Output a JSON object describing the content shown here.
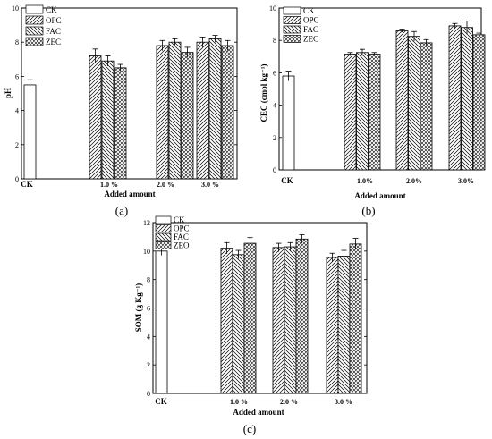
{
  "chart_data": [
    {
      "type": "bar",
      "panel_label": "(a)",
      "ylabel": "pH",
      "xlabel": "Added amount",
      "ylim": [
        0,
        10
      ],
      "yticks": [
        "0",
        "2",
        "4",
        "6",
        "8",
        "10"
      ],
      "group_labels": [
        "CK",
        "1.0 %",
        "2.0 %",
        "3.0 %"
      ],
      "legend": [
        "CK",
        "OPC",
        "FAC",
        "ZEC"
      ],
      "legend_position": "top-left",
      "series": [
        {
          "name": "CK",
          "values": [
            5.5,
            null,
            null,
            null
          ],
          "errors": [
            0.3,
            null,
            null,
            null
          ]
        },
        {
          "name": "OPC",
          "values": [
            null,
            7.2,
            7.8,
            8.0
          ],
          "errors": [
            null,
            0.4,
            0.3,
            0.3
          ]
        },
        {
          "name": "FAC",
          "values": [
            null,
            6.9,
            8.0,
            8.2
          ],
          "errors": [
            null,
            0.3,
            0.2,
            0.2
          ]
        },
        {
          "name": "ZEC",
          "values": [
            null,
            6.5,
            7.4,
            7.8
          ],
          "errors": [
            null,
            0.2,
            0.3,
            0.3
          ]
        }
      ]
    },
    {
      "type": "bar",
      "panel_label": "(b)",
      "ylabel": "CEC (cmol kg⁻¹)",
      "xlabel": "Added amount",
      "ylim": [
        0,
        10
      ],
      "yticks": [
        "0",
        "2",
        "4",
        "6",
        "8",
        "10"
      ],
      "group_labels": [
        "CK",
        "1.0%",
        "2.0%",
        "3.0%"
      ],
      "legend": [
        "CK",
        "OPC",
        "FAC",
        "ZEC"
      ],
      "legend_position": "top-left",
      "series": [
        {
          "name": "CK",
          "values": [
            5.8,
            null,
            null,
            null
          ],
          "errors": [
            0.3,
            null,
            null,
            null
          ]
        },
        {
          "name": "OPC",
          "values": [
            null,
            7.15,
            8.6,
            8.9
          ],
          "errors": [
            null,
            0.1,
            0.1,
            0.15
          ]
        },
        {
          "name": "FAC",
          "values": [
            null,
            7.25,
            8.25,
            8.8
          ],
          "errors": [
            null,
            0.2,
            0.3,
            0.4
          ]
        },
        {
          "name": "ZEC",
          "values": [
            null,
            7.15,
            7.85,
            8.35
          ],
          "errors": [
            null,
            0.1,
            0.2,
            0.1
          ]
        }
      ]
    },
    {
      "type": "bar",
      "panel_label": "(c)",
      "ylabel": "SOM (g Kg⁻¹)",
      "xlabel": "Added amount",
      "ylim": [
        0,
        12
      ],
      "yticks": [
        "0",
        "2",
        "4",
        "6",
        "8",
        "10",
        "12"
      ],
      "group_labels": [
        "CK",
        "1.0 %",
        "2.0 %",
        "3.0 %"
      ],
      "legend": [
        "CK",
        "OPC",
        "FAC",
        "ZEO"
      ],
      "legend_position": "top-left",
      "series": [
        {
          "name": "CK",
          "values": [
            10.0,
            null,
            null,
            null
          ],
          "errors": [
            0.3,
            null,
            null,
            null
          ]
        },
        {
          "name": "OPC",
          "values": [
            null,
            10.2,
            10.25,
            9.55
          ],
          "errors": [
            null,
            0.4,
            0.3,
            0.3
          ]
        },
        {
          "name": "FAC",
          "values": [
            null,
            9.75,
            10.3,
            9.65
          ],
          "errors": [
            null,
            0.3,
            0.3,
            0.4
          ]
        },
        {
          "name": "ZEO",
          "values": [
            null,
            10.55,
            10.85,
            10.5
          ],
          "errors": [
            null,
            0.4,
            0.3,
            0.4
          ]
        }
      ]
    }
  ]
}
